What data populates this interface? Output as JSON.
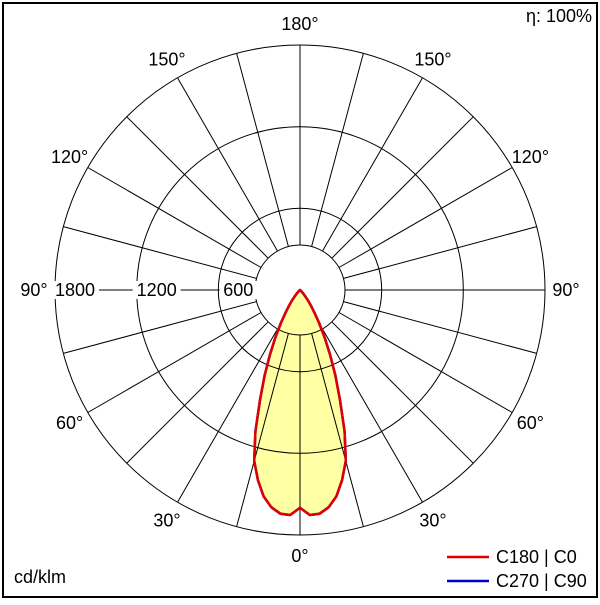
{
  "labels": {
    "efficiency": "η: 100%",
    "unit": "cd/klm"
  },
  "legend": [
    {
      "label": "C180 | C0",
      "color": "#e10000"
    },
    {
      "label": "C270 | C90",
      "color": "#0000d0"
    }
  ],
  "chart_data": {
    "type": "polar-line",
    "title": "",
    "description": "Photometric polar diagram: luminous intensity (cd/klm) vs angle from nadir",
    "angle_reference": "0 = nadir (straight down); degrees; negative = left half of plane",
    "r_max": 1800,
    "grid_angle_step": 15,
    "radial_ticks": [
      {
        "value": 600,
        "label": "600"
      },
      {
        "value": 1200,
        "label": "1200"
      },
      {
        "value": 1800,
        "label": "1800"
      }
    ],
    "angle_labels": [
      {
        "angle": 0,
        "text": "0°"
      },
      {
        "angle": 30,
        "text": "30°"
      },
      {
        "angle": -30,
        "text": "30°"
      },
      {
        "angle": 60,
        "text": "60°"
      },
      {
        "angle": -60,
        "text": "60°"
      },
      {
        "angle": 90,
        "text": "90°"
      },
      {
        "angle": -90,
        "text": "90°"
      },
      {
        "angle": 120,
        "text": "120°"
      },
      {
        "angle": -120,
        "text": "120°"
      },
      {
        "angle": 150,
        "text": "150°"
      },
      {
        "angle": -150,
        "text": "150°"
      },
      {
        "angle": 180,
        "text": "180°"
      }
    ],
    "fill_color": "#ffffa3",
    "series": [
      {
        "name": "C180 | C0",
        "color": "#e10000"
      },
      {
        "name": "C270 | C90",
        "color": "#0000d0"
      }
    ],
    "points": [
      [
        -50,
        0
      ],
      [
        -47.5,
        8
      ],
      [
        -45,
        20
      ],
      [
        -42.5,
        38
      ],
      [
        -40,
        60
      ],
      [
        -37.5,
        95
      ],
      [
        -35,
        140
      ],
      [
        -32.5,
        200
      ],
      [
        -30,
        280
      ],
      [
        -27.5,
        390
      ],
      [
        -25,
        520
      ],
      [
        -22.5,
        680
      ],
      [
        -20,
        860
      ],
      [
        -17.5,
        1090
      ],
      [
        -15,
        1300
      ],
      [
        -12.5,
        1430
      ],
      [
        -10,
        1540
      ],
      [
        -7.5,
        1610
      ],
      [
        -5,
        1650
      ],
      [
        -2.5,
        1655
      ],
      [
        0,
        1600
      ],
      [
        2.5,
        1655
      ],
      [
        5,
        1650
      ],
      [
        7.5,
        1610
      ],
      [
        10,
        1540
      ],
      [
        12.5,
        1430
      ],
      [
        15,
        1300
      ],
      [
        17.5,
        1090
      ],
      [
        20,
        860
      ],
      [
        22.5,
        680
      ],
      [
        25,
        520
      ],
      [
        27.5,
        390
      ],
      [
        30,
        280
      ],
      [
        32.5,
        200
      ],
      [
        35,
        140
      ],
      [
        37.5,
        95
      ],
      [
        40,
        60
      ],
      [
        42.5,
        38
      ],
      [
        45,
        20
      ],
      [
        47.5,
        8
      ],
      [
        50,
        0
      ]
    ]
  }
}
